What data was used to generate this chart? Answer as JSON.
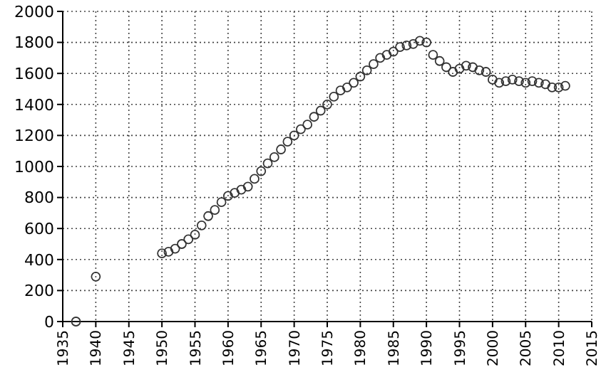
{
  "chart_data": {
    "type": "scatter",
    "marker": "circle",
    "grid": true,
    "x": [
      1937,
      1940,
      1950,
      1951,
      1952,
      1953,
      1954,
      1955,
      1956,
      1957,
      1958,
      1959,
      1960,
      1961,
      1962,
      1963,
      1964,
      1965,
      1966,
      1967,
      1968,
      1969,
      1970,
      1971,
      1972,
      1973,
      1974,
      1975,
      1976,
      1977,
      1978,
      1979,
      1980,
      1981,
      1982,
      1983,
      1984,
      1985,
      1986,
      1987,
      1988,
      1989,
      1990,
      1991,
      1992,
      1993,
      1994,
      1995,
      1996,
      1997,
      1998,
      1999,
      2000,
      2001,
      2002,
      2003,
      2004,
      2005,
      2006,
      2007,
      2008,
      2009,
      2010,
      2011
    ],
    "series": [
      {
        "color": "#333333",
        "values": [
          0,
          290,
          440,
          450,
          470,
          500,
          530,
          560,
          620,
          680,
          720,
          770,
          810,
          830,
          850,
          870,
          920,
          970,
          1020,
          1060,
          1110,
          1160,
          1200,
          1240,
          1270,
          1320,
          1360,
          1400,
          1450,
          1490,
          1510,
          1540,
          1580,
          1620,
          1660,
          1700,
          1720,
          1740,
          1770,
          1780,
          1790,
          1810,
          1800,
          1720,
          1680,
          1640,
          1610,
          1630,
          1650,
          1640,
          1620,
          1610,
          1560,
          1540,
          1550,
          1560,
          1550,
          1540,
          1550,
          1540,
          1530,
          1510,
          1510,
          1520
        ]
      }
    ],
    "xlim": [
      1935,
      2015
    ],
    "xticks": [
      1935,
      1940,
      1945,
      1950,
      1955,
      1960,
      1965,
      1970,
      1975,
      1980,
      1985,
      1990,
      1995,
      2000,
      2005,
      2010,
      2015
    ],
    "ylim": [
      0,
      2000
    ],
    "yticks": [
      0,
      200,
      400,
      600,
      800,
      1000,
      1200,
      1400,
      1600,
      1800,
      2000
    ]
  }
}
